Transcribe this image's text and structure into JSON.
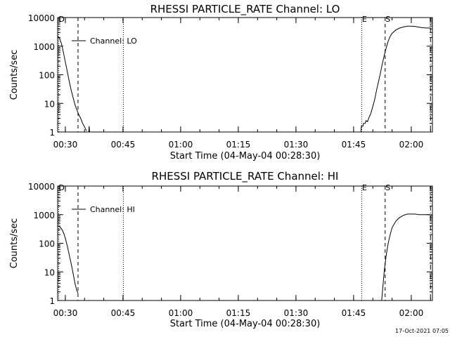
{
  "footer_text": "17-Oct-2021 07:05",
  "chart_data": [
    {
      "type": "line",
      "title": "RHESSI PARTICLE_RATE Channel: LO",
      "xlabel": "Start Time (04-May-04 00:28:30)",
      "ylabel": "Counts/sec",
      "yscale": "log",
      "xlim": [
        0,
        97.5
      ],
      "ylim": [
        1,
        10000
      ],
      "x_ticks": [
        2,
        17,
        32,
        47,
        62,
        77,
        92
      ],
      "x_tick_labels": [
        "00:30",
        "00:45",
        "01:00",
        "01:15",
        "01:30",
        "01:45",
        "02:00"
      ],
      "y_ticks": [
        1,
        10,
        100,
        1000,
        10000
      ],
      "y_tick_labels": [
        "1",
        "10",
        "100",
        "1000",
        "10000"
      ],
      "legend": "Channel: LO",
      "markers": [
        {
          "label": "D",
          "x": 0.3,
          "style": "dotted"
        },
        {
          "label": "",
          "x": 5.3,
          "style": "dashed"
        },
        {
          "label": "",
          "x": 17.1,
          "style": "dotted"
        },
        {
          "label": "E",
          "x": 79.1,
          "style": "dotted"
        },
        {
          "label": "S",
          "x": 85.2,
          "style": "dashed"
        },
        {
          "label": "",
          "x": 97,
          "style": "dashdot"
        }
      ],
      "series": [
        {
          "name": "Channel: LO",
          "segments": [
            [
              [
                0,
                2200
              ],
              [
                0.5,
                1900
              ],
              [
                1,
                1200
              ],
              [
                1.5,
                600
              ],
              [
                2,
                280
              ],
              [
                2.5,
                130
              ],
              [
                3,
                60
              ],
              [
                3.5,
                30
              ],
              [
                4,
                16
              ],
              [
                4.5,
                9
              ],
              [
                5,
                6
              ],
              [
                5.5,
                4
              ],
              [
                6,
                3
              ],
              [
                6.5,
                2
              ],
              [
                7,
                1.5
              ],
              [
                7.5,
                1.1
              ]
            ],
            [
              [
                8.1,
                1.0
              ],
              [
                8.2,
                1.6
              ],
              [
                8.3,
                1.0
              ]
            ],
            [
              [
                78.9,
                1.0
              ],
              [
                79.0,
                1.6
              ],
              [
                79.4,
                1.6
              ],
              [
                79.6,
                2.0
              ],
              [
                80,
                2.0
              ],
              [
                80.2,
                2.5
              ],
              [
                80.6,
                2.3
              ],
              [
                81,
                3.2
              ],
              [
                81.5,
                4.5
              ],
              [
                82,
                8
              ],
              [
                82.5,
                14
              ],
              [
                83,
                30
              ],
              [
                83.5,
                60
              ],
              [
                84,
                120
              ],
              [
                84.5,
                250
              ],
              [
                85,
                500
              ],
              [
                85.5,
                900
              ],
              [
                86,
                1500
              ],
              [
                86.5,
                2200
              ],
              [
                87,
                2800
              ],
              [
                88,
                3700
              ],
              [
                89,
                4300
              ],
              [
                90,
                4700
              ],
              [
                91,
                5000
              ],
              [
                92,
                5000
              ],
              [
                93,
                4900
              ],
              [
                94,
                4600
              ],
              [
                95,
                4400
              ],
              [
                96,
                4300
              ],
              [
                96.8,
                4300
              ]
            ]
          ]
        }
      ]
    },
    {
      "type": "line",
      "title": "RHESSI PARTICLE_RATE Channel: HI",
      "xlabel": "Start Time (04-May-04 00:28:30)",
      "ylabel": "Counts/sec",
      "yscale": "log",
      "xlim": [
        0,
        97.5
      ],
      "ylim": [
        1,
        10000
      ],
      "x_ticks": [
        2,
        17,
        32,
        47,
        62,
        77,
        92
      ],
      "x_tick_labels": [
        "00:30",
        "00:45",
        "01:00",
        "01:15",
        "01:30",
        "01:45",
        "02:00"
      ],
      "y_ticks": [
        1,
        10,
        100,
        1000,
        10000
      ],
      "y_tick_labels": [
        "1",
        "10",
        "100",
        "1000",
        "10000"
      ],
      "legend": "Channel: HI",
      "markers": [
        {
          "label": "D",
          "x": 0.3,
          "style": "dotted"
        },
        {
          "label": "",
          "x": 5.3,
          "style": "dashed"
        },
        {
          "label": "",
          "x": 17.1,
          "style": "dotted"
        },
        {
          "label": "E",
          "x": 79.1,
          "style": "dotted"
        },
        {
          "label": "S",
          "x": 85.2,
          "style": "dashed"
        },
        {
          "label": "",
          "x": 97,
          "style": "dashdot"
        }
      ],
      "series": [
        {
          "name": "Channel: HI",
          "segments": [
            [
              [
                0,
                400
              ],
              [
                0.5,
                380
              ],
              [
                1,
                320
              ],
              [
                1.5,
                240
              ],
              [
                2,
                150
              ],
              [
                2.5,
                80
              ],
              [
                3,
                40
              ],
              [
                3.5,
                20
              ],
              [
                4,
                9
              ],
              [
                4.5,
                4
              ],
              [
                5,
                2.2
              ],
              [
                5.3,
                1.8
              ]
            ],
            [
              [
                84.3,
                1.0
              ],
              [
                84.5,
                2
              ],
              [
                84.8,
                6
              ],
              [
                85,
                12
              ],
              [
                85.5,
                40
              ],
              [
                86,
                100
              ],
              [
                86.5,
                200
              ],
              [
                87,
                350
              ],
              [
                88,
                600
              ],
              [
                89,
                800
              ],
              [
                90,
                950
              ],
              [
                91,
                1050
              ],
              [
                92,
                1050
              ],
              [
                93,
                1050
              ],
              [
                94,
                1000
              ],
              [
                95,
                1000
              ],
              [
                96,
                1000
              ],
              [
                96.8,
                1000
              ]
            ]
          ]
        }
      ]
    }
  ]
}
